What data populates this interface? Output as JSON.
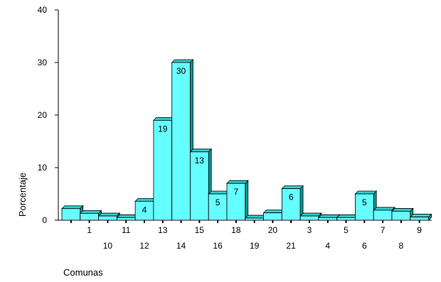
{
  "chart_data": {
    "type": "bar",
    "categories": [
      "",
      "1",
      "10",
      "11",
      "12",
      "13",
      "14",
      "15",
      "16",
      "18",
      "19",
      "20",
      "21",
      "3",
      "4",
      "5",
      "6",
      "7",
      "8",
      "9"
    ],
    "values": [
      2.2,
      1.3,
      0.8,
      0.5,
      3.6,
      19,
      30,
      13,
      5,
      7,
      0.4,
      1.4,
      6,
      0.8,
      0.5,
      0.5,
      5,
      1.9,
      1.7,
      0.6
    ],
    "data_labels": [
      "",
      "",
      "",
      "",
      "4",
      "19",
      "30",
      "13",
      "5",
      "7",
      "",
      "",
      "6",
      "",
      "",
      "",
      "5",
      "",
      "",
      ""
    ],
    "ylabel": "Porcentaje",
    "xlabel": "Comunas",
    "ylim": [
      0,
      40
    ],
    "yticks": [
      0,
      10,
      20,
      30,
      40
    ],
    "bar_color": "#66ffff",
    "bar_top_color": "#33cccc",
    "bar_side_color": "#009999",
    "grid": false
  }
}
